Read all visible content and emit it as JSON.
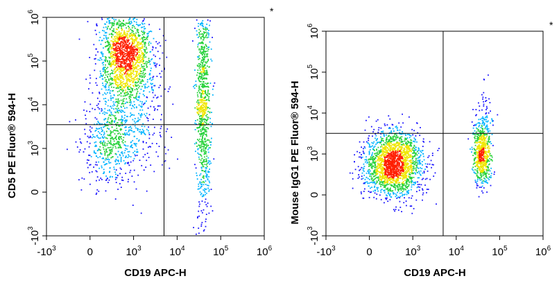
{
  "chart_data": [
    {
      "type": "scatter",
      "subtype": "flow-cytometry-density-plot",
      "title": "",
      "xlabel": "CD19 APC-H",
      "ylabel": "CD5 PE Fluor® 594-H",
      "corner_mark": "*",
      "x_scale": "biexponential",
      "y_scale": "biexponential",
      "xlim": [
        -1000,
        1000000
      ],
      "ylim": [
        -1000,
        1000000
      ],
      "x_ticks": [
        {
          "base": "-10",
          "exp": "3",
          "value": -1000
        },
        {
          "base": "0",
          "exp": "",
          "value": 0
        },
        {
          "base": "10",
          "exp": "3",
          "value": 1000
        },
        {
          "base": "10",
          "exp": "4",
          "value": 10000
        },
        {
          "base": "10",
          "exp": "5",
          "value": 100000
        },
        {
          "base": "10",
          "exp": "6",
          "value": 1000000
        }
      ],
      "y_ticks": [
        {
          "base": "-10",
          "exp": "3",
          "value": -1000
        },
        {
          "base": "0",
          "exp": "",
          "value": 0
        },
        {
          "base": "10",
          "exp": "3",
          "value": 1000
        },
        {
          "base": "10",
          "exp": "4",
          "value": 10000
        },
        {
          "base": "10",
          "exp": "5",
          "value": 100000
        },
        {
          "base": "10",
          "exp": "6",
          "value": 1000000
        }
      ],
      "gates": {
        "x": 5000,
        "y": 3500
      },
      "populations": [
        {
          "x": 800,
          "y": 130000,
          "sx": 0.3,
          "sy": 0.55,
          "n": 1700
        },
        {
          "x": 500,
          "y": 1400,
          "sx": 0.35,
          "sy": 0.45,
          "n": 550
        },
        {
          "x": 40000,
          "y": 10000,
          "sx": 0.08,
          "sy": 1.25,
          "n": 900
        },
        {
          "x": 1200,
          "y": 8000,
          "sx": 0.4,
          "sy": 0.8,
          "n": 250
        }
      ],
      "colors": {
        "low": "#1a14ff",
        "mid1": "#00b4ff",
        "mid2": "#28d23c",
        "mid3": "#f0e600",
        "high": "#ff1e00"
      }
    },
    {
      "type": "scatter",
      "subtype": "flow-cytometry-density-plot",
      "title": "",
      "xlabel": "CD19 APC-H",
      "ylabel": "Mouse IgG1 PE Fluor® 594-H",
      "corner_mark": "*",
      "x_scale": "biexponential",
      "y_scale": "biexponential",
      "xlim": [
        -1000,
        1000000
      ],
      "ylim": [
        -1000,
        1000000
      ],
      "x_ticks": [
        {
          "base": "-10",
          "exp": "3",
          "value": -1000
        },
        {
          "base": "0",
          "exp": "",
          "value": 0
        },
        {
          "base": "10",
          "exp": "3",
          "value": 1000
        },
        {
          "base": "10",
          "exp": "4",
          "value": 10000
        },
        {
          "base": "10",
          "exp": "5",
          "value": 100000
        },
        {
          "base": "10",
          "exp": "6",
          "value": 1000000
        }
      ],
      "y_ticks": [
        {
          "base": "-10",
          "exp": "3",
          "value": -1000
        },
        {
          "base": "0",
          "exp": "",
          "value": 0
        },
        {
          "base": "10",
          "exp": "3",
          "value": 1000
        },
        {
          "base": "10",
          "exp": "4",
          "value": 10000
        },
        {
          "base": "10",
          "exp": "5",
          "value": 100000
        },
        {
          "base": "10",
          "exp": "6",
          "value": 1000000
        }
      ],
      "gates": {
        "x": 5000,
        "y": 3200
      },
      "populations": [
        {
          "x": 550,
          "y": 750,
          "sx": 0.33,
          "sy": 0.4,
          "n": 2000
        },
        {
          "x": 40000,
          "y": 1000,
          "sx": 0.1,
          "sy": 0.4,
          "n": 650
        },
        {
          "x": 45000,
          "y": 6000,
          "sx": 0.1,
          "sy": 0.5,
          "n": 80
        }
      ],
      "colors": {
        "low": "#1a14ff",
        "mid1": "#00b4ff",
        "mid2": "#28d23c",
        "mid3": "#f0e600",
        "high": "#ff1e00"
      }
    }
  ]
}
